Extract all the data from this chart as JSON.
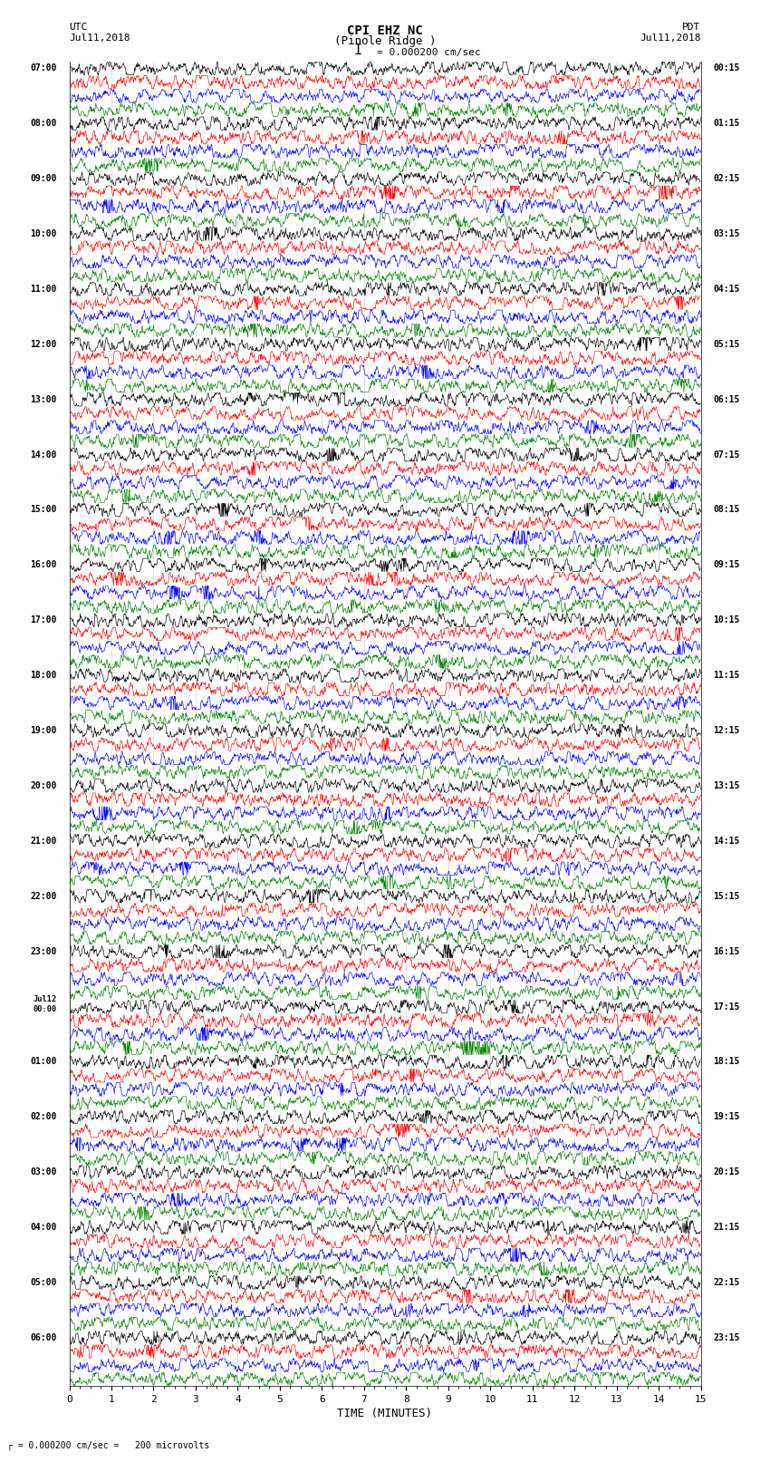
{
  "title_line1": "CPI EHZ NC",
  "title_line2": "(Pinole Ridge )",
  "scale_label": "I = 0.000200 cm/sec",
  "xlabel": "TIME (MINUTES)",
  "bottom_note": "= 0.000200 cm/sec =   200 microvolts",
  "background_color": "#ffffff",
  "colors": [
    "black",
    "red",
    "blue",
    "green"
  ],
  "left_times": [
    "07:00",
    "08:00",
    "09:00",
    "10:00",
    "11:00",
    "12:00",
    "13:00",
    "14:00",
    "15:00",
    "16:00",
    "17:00",
    "18:00",
    "19:00",
    "20:00",
    "21:00",
    "22:00",
    "23:00",
    "Jul12\n00:00",
    "01:00",
    "02:00",
    "03:00",
    "04:00",
    "05:00",
    "06:00"
  ],
  "right_times": [
    "00:15",
    "01:15",
    "02:15",
    "03:15",
    "04:15",
    "05:15",
    "06:15",
    "07:15",
    "08:15",
    "09:15",
    "10:15",
    "11:15",
    "12:15",
    "13:15",
    "14:15",
    "15:15",
    "16:15",
    "17:15",
    "18:15",
    "19:15",
    "20:15",
    "21:15",
    "22:15",
    "23:15"
  ],
  "n_groups": 24,
  "traces_per_group": 4,
  "time_minutes": 15,
  "xmin": 0,
  "xmax": 15,
  "xticks": [
    0,
    1,
    2,
    3,
    4,
    5,
    6,
    7,
    8,
    9,
    10,
    11,
    12,
    13,
    14,
    15
  ]
}
